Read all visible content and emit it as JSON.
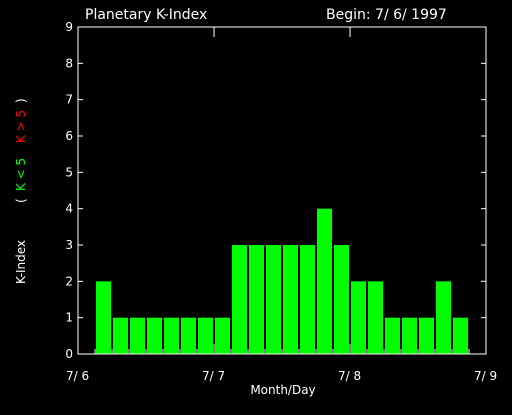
{
  "chart_data": {
    "type": "bar",
    "title": "Planetary K-Index",
    "begin_label": "Begin: 7/ 6/ 1997",
    "xlabel": "Month/Day",
    "ylabel": {
      "prefix": "K-Index",
      "open_paren": "(",
      "green_part": "K < 5",
      "red_part": "K > 5",
      "close_paren": ")"
    },
    "ylim": [
      0,
      9
    ],
    "xlim": [
      0,
      24
    ],
    "yticks": [
      "0",
      "1",
      "2",
      "3",
      "4",
      "5",
      "6",
      "7",
      "8",
      "9"
    ],
    "xticks": [
      {
        "label": "7/ 6",
        "x": 0
      },
      {
        "label": "7/ 7",
        "x": 8
      },
      {
        "label": "7/ 8",
        "x": 16
      },
      {
        "label": "7/ 9",
        "x": 24
      }
    ],
    "values": [
      2,
      1,
      1,
      1,
      1,
      1,
      1,
      1,
      3,
      3,
      3,
      3,
      3,
      4,
      3,
      2,
      2,
      1,
      1,
      1,
      2,
      1
    ],
    "start_index": 1,
    "grid": false,
    "colors": {
      "background": "#000000",
      "axes": "#ffffff",
      "bar_low": "#00ff00",
      "bar_high": "#ff0000",
      "label_green": "#00ff00",
      "label_red": "#ff0000"
    }
  }
}
